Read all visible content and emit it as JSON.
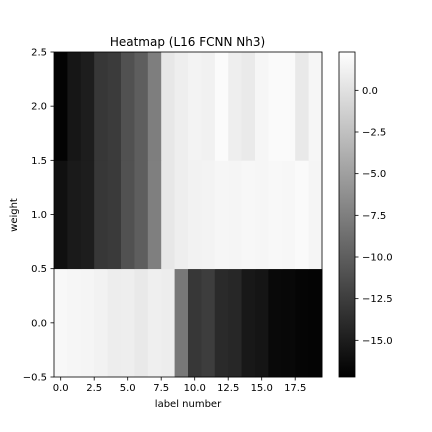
{
  "chart_data": {
    "type": "heatmap",
    "title": "Heatmap (L16 FCNN Nh3)",
    "xlabel": "label number",
    "ylabel": "weight",
    "x_categories": [
      0,
      1,
      2,
      3,
      4,
      5,
      6,
      7,
      8,
      9,
      10,
      11,
      12,
      13,
      14,
      15,
      16,
      17,
      18,
      19
    ],
    "y_categories": [
      0,
      1,
      2
    ],
    "xlim": [
      -0.5,
      19.5
    ],
    "ylim": [
      -0.5,
      2.5
    ],
    "x_ticks": [
      0.0,
      2.5,
      5.0,
      7.5,
      10.0,
      12.5,
      15.0,
      17.5
    ],
    "x_tick_labels": [
      "0.0",
      "2.5",
      "5.0",
      "7.5",
      "10.0",
      "12.5",
      "15.0",
      "17.5"
    ],
    "y_ticks": [
      -0.5,
      0.0,
      0.5,
      1.0,
      1.5,
      2.0,
      2.5
    ],
    "y_tick_labels": [
      "−0.5",
      "0.0",
      "0.5",
      "1.0",
      "1.5",
      "2.0",
      "2.5"
    ],
    "values": [
      [
        1.8,
        1.6,
        1.5,
        1.3,
        0.9,
        1.0,
        0.6,
        1.1,
        0.9,
        -8.0,
        -13.0,
        -12.5,
        -14.0,
        -14.2,
        -15.4,
        -15.6,
        -16.5,
        -16.6,
        -16.8,
        -16.9
      ],
      [
        -16.0,
        -15.2,
        -15.0,
        -13.0,
        -12.8,
        -11.0,
        -10.0,
        -7.5,
        0.5,
        1.0,
        1.3,
        1.4,
        1.6,
        1.5,
        1.7,
        1.6,
        1.8,
        1.7,
        1.9,
        1.5
      ],
      [
        -17.0,
        -15.5,
        -15.0,
        -13.0,
        -12.7,
        -11.0,
        -10.0,
        -7.6,
        0.5,
        1.0,
        1.4,
        1.2,
        2.0,
        1.0,
        0.7,
        1.6,
        1.9,
        1.9,
        0.6,
        1.6
      ]
    ],
    "colormap": "gray",
    "vmin": -17.2,
    "vmax": 2.3,
    "colorbar": {
      "ticks": [
        0.0,
        -2.5,
        -5.0,
        -7.5,
        -10.0,
        -12.5,
        -15.0
      ],
      "tick_labels": [
        "0.0",
        "−2.5",
        "−5.0",
        "−7.5",
        "−10.0",
        "−12.5",
        "−15.0"
      ]
    }
  }
}
